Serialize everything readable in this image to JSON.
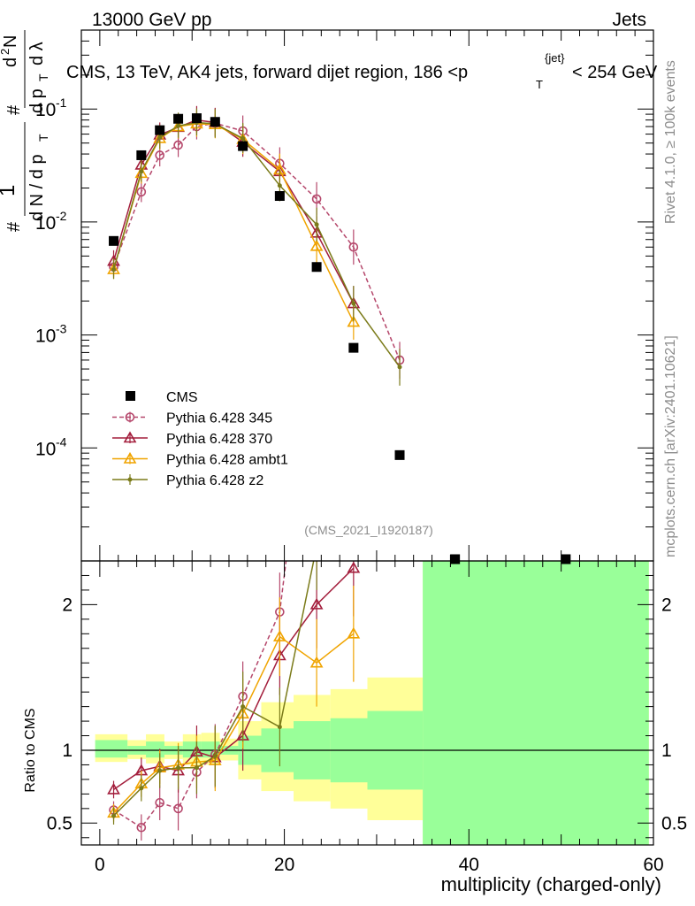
{
  "header": {
    "left": "13000 GeV pp",
    "right": "Jets"
  },
  "side_labels": {
    "rivet": "Rivet 4.1.0, ≥ 100k events",
    "mcplots": "mcplots.cern.ch [arXiv:2401.10621]"
  },
  "chart_data": {
    "type": "scatter",
    "title": "CMS, 13 TeV, AK4 jets, forward dijet region, 186 <p_T^{jet}< 254 GeV",
    "analysis_id": "(CMS_2021_I1920187)",
    "xlabel": "multiplicity (charged-only)",
    "ylabel_main": "1/(dN/dp_T) d²N/(dp_T dλ)",
    "ylabel_ratio": "Ratio to CMS",
    "xlim": [
      -2,
      60
    ],
    "ylim_main_log": [
      1e-05,
      0.5
    ],
    "ylim_ratio": [
      0.35,
      2.3
    ],
    "x_ticks": [
      0,
      20,
      40,
      60
    ],
    "y_ticks_main": [
      {
        "value": 0.1,
        "base": "10",
        "exp": "-1"
      },
      {
        "value": 0.01,
        "base": "10",
        "exp": "-2"
      },
      {
        "value": 0.001,
        "base": "10",
        "exp": "-3"
      },
      {
        "value": 0.0001,
        "base": "10",
        "exp": "-4"
      }
    ],
    "y_ticks_ratio": [
      0.5,
      1,
      2
    ],
    "cms": {
      "name": "CMS",
      "x": [
        1.5,
        4.5,
        6.5,
        8.5,
        10.5,
        12.5,
        15.5,
        19.5,
        23.5,
        27.5,
        32.5,
        38.5,
        50.5
      ],
      "y": [
        0.0068,
        0.039,
        0.065,
        0.082,
        0.083,
        0.077,
        0.047,
        0.017,
        0.004,
        0.00077,
        8.65e-05,
        5.5e-06,
        5.5e-06
      ]
    },
    "band_edges": [
      -0.5,
      3,
      5,
      7,
      9,
      11,
      13,
      15,
      17.5,
      21,
      25,
      29,
      35,
      59.5
    ],
    "band_stat": [
      [
        0.95,
        1.07
      ],
      [
        0.97,
        1.03
      ],
      [
        0.95,
        1.06
      ],
      [
        0.97,
        1.03
      ],
      [
        0.95,
        1.06
      ],
      [
        0.95,
        1.06
      ],
      [
        0.97,
        1.03
      ],
      [
        0.9,
        1.1
      ],
      [
        0.85,
        1.15
      ],
      [
        0.8,
        1.2
      ],
      [
        0.78,
        1.22
      ],
      [
        0.73,
        1.27
      ],
      [
        0.35,
        2.3
      ]
    ],
    "band_syst": [
      [
        0.92,
        1.11
      ],
      [
        0.94,
        1.07
      ],
      [
        0.91,
        1.11
      ],
      [
        0.94,
        1.06
      ],
      [
        0.9,
        1.11
      ],
      [
        0.9,
        1.12
      ],
      [
        0.93,
        1.08
      ],
      [
        0.8,
        1.2
      ],
      [
        0.72,
        1.33
      ],
      [
        0.65,
        1.38
      ],
      [
        0.6,
        1.42
      ],
      [
        0.52,
        1.5
      ],
      [
        0.35,
        2.3
      ]
    ],
    "series": [
      {
        "name": "Pythia 6.428 345",
        "color": "#b5476b",
        "marker": "circle",
        "dashed": true,
        "x": [
          1.5,
          4.5,
          6.5,
          8.5,
          10.5,
          12.5,
          15.5,
          19.5,
          23.5,
          27.5,
          32.5
        ],
        "y": [
          0.004,
          0.0185,
          0.039,
          0.048,
          0.07,
          0.075,
          0.064,
          0.033,
          0.016,
          0.006,
          0.0006
        ],
        "ratio": [
          0.59,
          0.47,
          0.64,
          0.6,
          0.85,
          0.97,
          1.37,
          1.95,
          4.0,
          7.8,
          6.9
        ]
      },
      {
        "name": "Pythia 6.428 370",
        "color": "#a31e3c",
        "marker": "triangle",
        "dashed": false,
        "x": [
          1.5,
          4.5,
          6.5,
          8.5,
          10.5,
          12.5,
          15.5,
          19.5,
          23.5,
          27.5
        ],
        "y": [
          0.0045,
          0.032,
          0.059,
          0.069,
          0.08,
          0.076,
          0.051,
          0.028,
          0.008,
          0.0019
        ],
        "ratio": [
          0.73,
          0.86,
          0.89,
          0.86,
          0.99,
          0.95,
          1.1,
          1.65,
          2.0,
          2.25
        ]
      },
      {
        "name": "Pythia 6.428 ambt1",
        "color": "#f0a400",
        "marker": "triangle",
        "dashed": false,
        "x": [
          1.5,
          4.5,
          6.5,
          8.5,
          10.5,
          12.5,
          15.5,
          19.5,
          23.5,
          27.5
        ],
        "y": [
          0.0038,
          0.027,
          0.055,
          0.07,
          0.074,
          0.073,
          0.054,
          0.029,
          0.0061,
          0.0013
        ],
        "ratio": [
          0.57,
          0.77,
          0.88,
          0.9,
          0.92,
          0.93,
          1.25,
          1.78,
          1.6,
          1.8
        ]
      },
      {
        "name": "Pythia 6.428 z2",
        "color": "#7b7b1a",
        "marker": "dot",
        "dashed": false,
        "x": [
          1.5,
          4.5,
          6.5,
          8.5,
          10.5,
          12.5,
          15.5,
          19.5,
          23.5,
          27.5,
          32.5
        ],
        "y": [
          0.0038,
          0.028,
          0.056,
          0.071,
          0.076,
          0.074,
          0.055,
          0.021,
          0.0095,
          0.0019,
          0.00052
        ],
        "ratio": [
          0.55,
          0.74,
          0.86,
          0.88,
          0.88,
          0.96,
          1.3,
          1.16,
          2.4,
          3.0,
          6.0
        ]
      }
    ]
  }
}
